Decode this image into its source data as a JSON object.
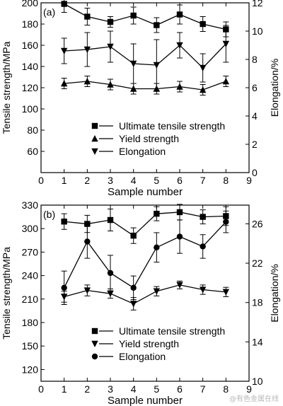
{
  "watermark": "@有色金属在线",
  "chart_data": [
    {
      "type": "line",
      "panel_label": "(a)",
      "xlabel": "Sample number",
      "ylabel_left": "Tensile strength/MPa",
      "ylabel_right": "Elongation/%",
      "xlim": [
        0,
        9
      ],
      "xticks": [
        0,
        1,
        2,
        3,
        4,
        5,
        6,
        7,
        8,
        9
      ],
      "ylim_left": [
        40,
        200
      ],
      "yticks_left": [
        60,
        80,
        100,
        120,
        140,
        160,
        180,
        200
      ],
      "ylim_right": [
        0,
        12
      ],
      "yticks_right": [
        0,
        2,
        4,
        6,
        8,
        10,
        12
      ],
      "x": [
        1,
        2,
        3,
        4,
        5,
        6,
        7,
        8
      ],
      "series": [
        {
          "name": "Ultimate tensile strength",
          "marker": "square",
          "axis": "left",
          "values": [
            199,
            187,
            182,
            188,
            179,
            189,
            180,
            175
          ],
          "errors": [
            8,
            8,
            5,
            8,
            7,
            9,
            7,
            7
          ]
        },
        {
          "name": "Yield strength",
          "marker": "triangle-up",
          "axis": "left",
          "values": [
            124,
            126,
            123,
            119,
            119,
            121,
            118,
            126
          ],
          "errors": [
            5,
            5,
            5,
            5,
            5,
            5,
            5,
            5
          ]
        },
        {
          "name": "Elongation",
          "marker": "triangle-down",
          "axis": "right",
          "values": [
            8.6,
            8.7,
            8.9,
            7.7,
            7.6,
            9.0,
            7.4,
            9.1
          ],
          "errors": [
            0.9,
            1.2,
            1.1,
            1.4,
            1.8,
            0.9,
            1.0,
            1.3
          ]
        }
      ],
      "legend_position": "bottom-right"
    },
    {
      "type": "line",
      "panel_label": "(b)",
      "xlabel": "Sample number",
      "ylabel_left": "Tensile strength/MPa",
      "ylabel_right": "Elongation/%",
      "xlim": [
        0,
        9
      ],
      "xticks": [
        0,
        1,
        2,
        3,
        4,
        5,
        6,
        7,
        8,
        9
      ],
      "ylim_left": [
        105,
        330
      ],
      "yticks_left": [
        120,
        150,
        180,
        210,
        240,
        270,
        300,
        330
      ],
      "ylim_right": [
        10,
        27.9
      ],
      "yticks_right": [
        10,
        14,
        18,
        22,
        26
      ],
      "x": [
        1,
        2,
        3,
        4,
        5,
        6,
        7,
        8
      ],
      "series": [
        {
          "name": "Ultimate tensile strength",
          "marker": "square",
          "axis": "left",
          "values": [
            309,
            306,
            311,
            291,
            319,
            321,
            315,
            316
          ],
          "errors": [
            10,
            11,
            14,
            10,
            9,
            10,
            9,
            12
          ]
        },
        {
          "name": "Yield strength",
          "marker": "triangle-down",
          "axis": "left",
          "values": [
            213,
            221,
            217,
            204,
            220,
            228,
            222,
            219
          ],
          "errors": [
            7,
            7,
            6,
            8,
            6,
            5,
            6,
            6
          ]
        },
        {
          "name": "Elongation",
          "marker": "circle",
          "axis": "right",
          "values": [
            19.5,
            24.2,
            21.0,
            19.5,
            23.6,
            24.7,
            23.7,
            26.2
          ],
          "errors": [
            1.7,
            1.7,
            1.8,
            1.2,
            1.5,
            1.7,
            1.2,
            1.1
          ]
        }
      ],
      "legend_position": "bottom-right"
    }
  ]
}
